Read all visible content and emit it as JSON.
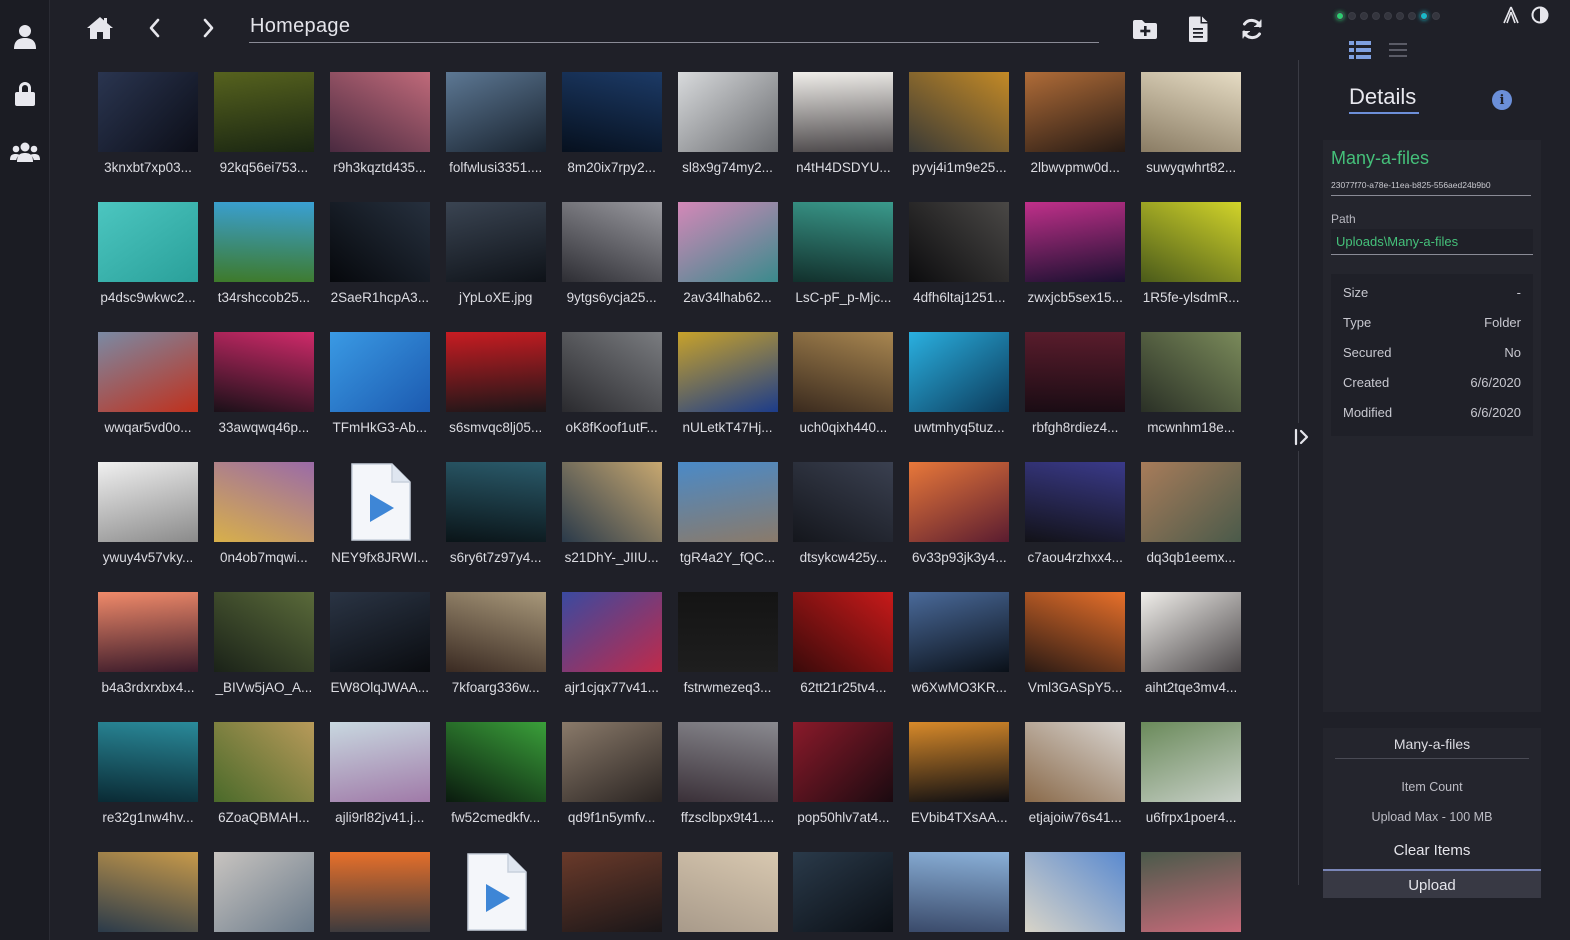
{
  "rail": {
    "items": [
      {
        "icon": "user-icon"
      },
      {
        "icon": "lock-icon"
      },
      {
        "icon": "users-icon"
      }
    ]
  },
  "toolbar": {
    "address": "Homepage",
    "icons": [
      "home-icon",
      "chevron-left-icon",
      "chevron-right-icon",
      "add-folder-icon",
      "new-file-icon",
      "refresh-icon"
    ]
  },
  "files": [
    {
      "name": "3knxbt7xp03...",
      "c1": "#2a3550",
      "c2": "#0c0e18"
    },
    {
      "name": "92kq56ei753...",
      "c1": "#56621e",
      "c2": "#1a2612"
    },
    {
      "name": "r9h3kqztd435...",
      "c1": "#c06a7a",
      "c2": "#4a2a40"
    },
    {
      "name": "folfwlusi3351....",
      "c1": "#5d7894",
      "c2": "#18222e"
    },
    {
      "name": "8m20ix7rpy2...",
      "c1": "#1c3a66",
      "c2": "#06101e"
    },
    {
      "name": "sl8x9g74my2...",
      "c1": "#d8dadc",
      "c2": "#6a6c70"
    },
    {
      "name": "n4tH4DSDYU...",
      "c1": "#f0eeea",
      "c2": "#4a4648"
    },
    {
      "name": "pyvj4i1m9e25...",
      "c1": "#c48a26",
      "c2": "#3a3a36"
    },
    {
      "name": "2lbwvpmw0d...",
      "c1": "#b06c38",
      "c2": "#261a14"
    },
    {
      "name": "suwyqwhrt82...",
      "c1": "#e6dcc4",
      "c2": "#8a7c64"
    },
    {
      "name": "p4dsc9wkwc2...",
      "c1": "#4cc6c0",
      "c2": "#2aa09a"
    },
    {
      "name": "t34rshccob25...",
      "c1": "#3aa0d4",
      "c2": "#3e7a2a"
    },
    {
      "name": "2SaeR1hcpA3...",
      "c1": "#26303e",
      "c2": "#06080c"
    },
    {
      "name": "jYpLoXE.jpg",
      "c1": "#3a4452",
      "c2": "#0e1218"
    },
    {
      "name": "9ytgs6ycja25...",
      "c1": "#9a9aa0",
      "c2": "#2e2e34"
    },
    {
      "name": "2av34lhab62...",
      "c1": "#d488b8",
      "c2": "#3a8a8c"
    },
    {
      "name": "LsC-pF_p-Mjc...",
      "c1": "#3a9a8c",
      "c2": "#12302c"
    },
    {
      "name": "4dfh6ltaj1251...",
      "c1": "#4a4846",
      "c2": "#0c0c0e"
    },
    {
      "name": "zwxjcb5sex15...",
      "c1": "#c0308a",
      "c2": "#1a1030"
    },
    {
      "name": "1R5fe-ylsdmR...",
      "c1": "#d2d42a",
      "c2": "#4a5a1a"
    },
    {
      "name": "wwqar5vd0o...",
      "c1": "#7a8aa4",
      "c2": "#c0301c"
    },
    {
      "name": "33awqwq46p...",
      "c1": "#d02a6a",
      "c2": "#1a1018"
    },
    {
      "name": "TFmHkG3-Ab...",
      "c1": "#3a9ae4",
      "c2": "#1c5ab0"
    },
    {
      "name": "s6smvqc8lj05...",
      "c1": "#c81c22",
      "c2": "#1c1618"
    },
    {
      "name": "oK8fKoof1utF...",
      "c1": "#7a7c80",
      "c2": "#2a2a2e"
    },
    {
      "name": "nULetkT47Hj...",
      "c1": "#c8a22a",
      "c2": "#1c3c8a"
    },
    {
      "name": "uch0qixh440...",
      "c1": "#a88650",
      "c2": "#3a2a1e"
    },
    {
      "name": "uwtmhyq5tuz...",
      "c1": "#2ab0e0",
      "c2": "#0c3a5a"
    },
    {
      "name": "rbfgh8rdiez4...",
      "c1": "#5a1c2c",
      "c2": "#1a0c14"
    },
    {
      "name": "mcwnhm18e...",
      "c1": "#7a8a5a",
      "c2": "#2a3026"
    },
    {
      "name": "ywuy4v57vky...",
      "c1": "#f0f0f0",
      "c2": "#8a8a8a"
    },
    {
      "name": "0n4ob7mqwi...",
      "c1": "#9a6aa8",
      "c2": "#d8b04a"
    },
    {
      "name": "NEY9fx8JRWI...",
      "video": true
    },
    {
      "name": "s6ry6t7z97y4...",
      "c1": "#2a5a6a",
      "c2": "#0a1418"
    },
    {
      "name": "s21DhY-_JIIU...",
      "c1": "#c8a870",
      "c2": "#2a3a4a"
    },
    {
      "name": "tgR4a2Y_fQC...",
      "c1": "#4a8ac8",
      "c2": "#8a7a6a"
    },
    {
      "name": "dtsykcw425y...",
      "c1": "#3a4050",
      "c2": "#14161c"
    },
    {
      "name": "6v33p93jk3y4...",
      "c1": "#e8783a",
      "c2": "#5a1c30"
    },
    {
      "name": "c7aou4rzhxx4...",
      "c1": "#3a3a8a",
      "c2": "#121218"
    },
    {
      "name": "dq3qb1eemx...",
      "c1": "#a87c5a",
      "c2": "#4a5a4a"
    },
    {
      "name": "b4a3rdxrxbx4...",
      "c1": "#f08a6a",
      "c2": "#3a1a2a"
    },
    {
      "name": "_BIVw5jAO_A...",
      "c1": "#5a6a3a",
      "c2": "#1a2218"
    },
    {
      "name": "EW8OlqJWAA...",
      "c1": "#2a3444",
      "c2": "#0a0c10"
    },
    {
      "name": "7kfoarg336w...",
      "c1": "#a8987a",
      "c2": "#3a2a22"
    },
    {
      "name": "ajr1cjqx77v41...",
      "c1": "#3a4aa0",
      "c2": "#c02a4a"
    },
    {
      "name": "fstrwmezeq3...",
      "c1": "#141414",
      "c2": "#1e1e1e"
    },
    {
      "name": "62tt21r25tv4...",
      "c1": "#c81a1a",
      "c2": "#3a0a0a"
    },
    {
      "name": "w6XwMO3KR...",
      "c1": "#4a6a9a",
      "c2": "#0a1018"
    },
    {
      "name": "Vml3GASpY5...",
      "c1": "#e8702a",
      "c2": "#2a1a14"
    },
    {
      "name": "aiht2tqe3mv4...",
      "c1": "#f0eeea",
      "c2": "#4a4648"
    },
    {
      "name": "re32g1nw4hv...",
      "c1": "#2a8a9a",
      "c2": "#0a2a34"
    },
    {
      "name": "6ZoaQBMAH...",
      "c1": "#b89a5a",
      "c2": "#4a6a2a"
    },
    {
      "name": "ajli9rl82jv41.j...",
      "c1": "#c8d8e0",
      "c2": "#a07aa8"
    },
    {
      "name": "fw52cmedkfv...",
      "c1": "#3aa03a",
      "c2": "#0a1a0e"
    },
    {
      "name": "qd9f1n5ymfv...",
      "c1": "#8a7a6a",
      "c2": "#2a2422"
    },
    {
      "name": "ffzsclbpx9t41....",
      "c1": "#8a8a90",
      "c2": "#3a3038"
    },
    {
      "name": "pop50hlv7at4...",
      "c1": "#8a1a2a",
      "c2": "#1a0a10"
    },
    {
      "name": "EVbib4TXsAA...",
      "c1": "#d88a2a",
      "c2": "#0e0e12"
    },
    {
      "name": "etjajoiw76s41...",
      "c1": "#d8d4d0",
      "c2": "#8a6a4a"
    },
    {
      "name": "u6frpx1poer4...",
      "c1": "#6a8a5a",
      "c2": "#c8d0c8"
    },
    {
      "name": "",
      "c1": "#c89a4a",
      "c2": "#2a3a4a"
    },
    {
      "name": "",
      "c1": "#c8c4c0",
      "c2": "#6a7a8a"
    },
    {
      "name": "",
      "c1": "#e8702a",
      "c2": "#3a3a3e"
    },
    {
      "name": "",
      "video": true
    },
    {
      "name": "",
      "c1": "#6a3a2a",
      "c2": "#1a1618"
    },
    {
      "name": "",
      "c1": "#d8c8b0",
      "c2": "#a89a8a"
    },
    {
      "name": "",
      "c1": "#2a3a4a",
      "c2": "#0a0e14"
    },
    {
      "name": "",
      "c1": "#8ab0d8",
      "c2": "#3a4a6a"
    },
    {
      "name": "",
      "c1": "#5a8ad0",
      "c2": "#d8d4c8"
    },
    {
      "name": "",
      "c1": "#4a5a4a",
      "c2": "#c86a7a"
    }
  ],
  "panel": {
    "status_dots": [
      {
        "color": "#2ecc71"
      },
      {
        "color": "#34353e"
      },
      {
        "color": "#34353e"
      },
      {
        "color": "#34353e"
      },
      {
        "color": "#34353e"
      },
      {
        "color": "#34353e"
      },
      {
        "color": "#34353e"
      },
      {
        "color": "#1ab8c8"
      },
      {
        "color": "#34353e"
      }
    ],
    "details_title": "Details",
    "folder_name": "Many-a-files",
    "folder_id": "23077f70-a78e-11ea-b825-556aed24b9b0",
    "path_label": "Path",
    "path_value": "Uploads\\Many-a-files",
    "props": [
      {
        "key": "Size",
        "value": "-"
      },
      {
        "key": "Type",
        "value": "Folder"
      },
      {
        "key": "Secured",
        "value": "No"
      },
      {
        "key": "Created",
        "value": "6/6/2020"
      },
      {
        "key": "Modified",
        "value": "6/6/2020"
      }
    ],
    "upload": {
      "title": "Many-a-files",
      "item_count": "Item Count",
      "upload_max": "Upload Max - 100 MB",
      "clear_label": "Clear Items",
      "upload_label": "Upload"
    },
    "accent": "#45c07a",
    "highlight": "#6d8fd9"
  }
}
